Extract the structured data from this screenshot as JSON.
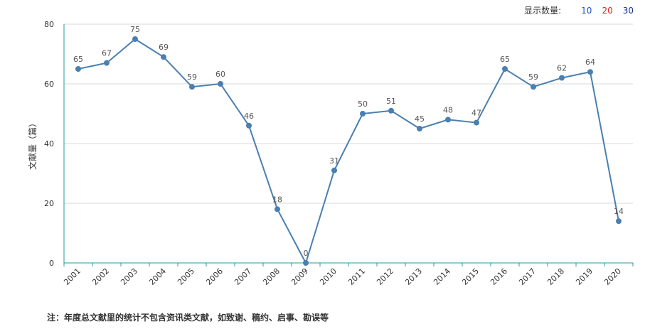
{
  "display_count": {
    "label": "显示数量:",
    "options": [
      {
        "text": "10",
        "color": "#1f4fd1"
      },
      {
        "text": "20",
        "color": "#e02020"
      },
      {
        "text": "30",
        "color": "#1f2f8f"
      }
    ]
  },
  "footnote": "注：年度总文献里的统计不包含资讯类文献，如致谢、稿约、启事、勘误等",
  "colors": {
    "line": "#4a7fb0",
    "grid": "#d8d8d8",
    "axis": "#2a9a9a"
  },
  "chart_data": {
    "type": "line",
    "ylabel": "文献量（篇）",
    "ylim": [
      0,
      80
    ],
    "yticks": [
      0,
      20,
      40,
      60,
      80
    ],
    "grid": true,
    "categories": [
      "2001",
      "2002",
      "2003",
      "2004",
      "2005",
      "2006",
      "2007",
      "2008",
      "2009",
      "2010",
      "2011",
      "2012",
      "2013",
      "2014",
      "2015",
      "2016",
      "2017",
      "2018",
      "2019",
      "2020"
    ],
    "series": [
      {
        "values": [
          65,
          67,
          75,
          69,
          59,
          60,
          46,
          18,
          0,
          31,
          50,
          51,
          45,
          48,
          47,
          65,
          59,
          62,
          64,
          14
        ]
      }
    ]
  }
}
